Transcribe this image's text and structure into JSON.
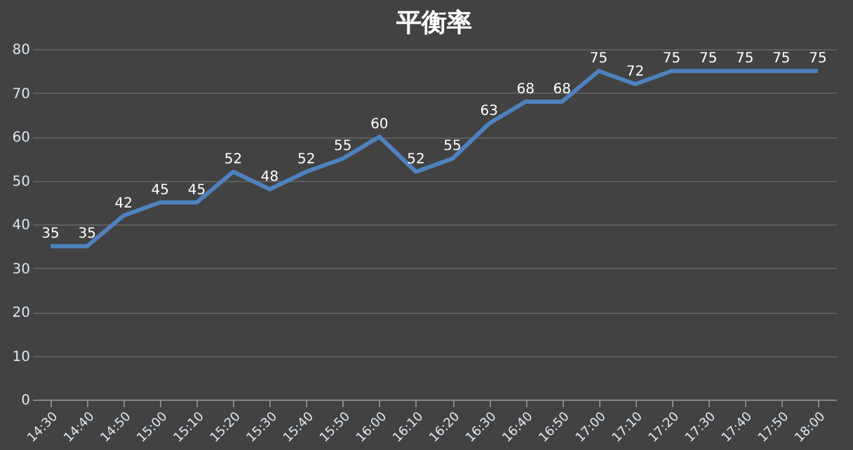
{
  "chart_data": {
    "type": "line",
    "title": "平衡率",
    "categories": [
      "14:30",
      "14:40",
      "14:50",
      "15:00",
      "15:10",
      "15:20",
      "15:30",
      "15:40",
      "15:50",
      "16:00",
      "16:10",
      "16:20",
      "16:30",
      "16:40",
      "16:50",
      "17:00",
      "17:10",
      "17:20",
      "17:30",
      "17:40",
      "17:50",
      "18:00"
    ],
    "series": [
      {
        "color": "#4f81bd",
        "values": [
          35,
          35,
          42,
          45,
          45,
          52,
          48,
          52,
          55,
          60,
          52,
          55,
          63,
          68,
          68,
          75,
          72,
          75,
          75,
          75,
          75,
          75
        ]
      }
    ],
    "ylim": [
      0,
      80
    ],
    "yticks": [
      0,
      10,
      20,
      30,
      40,
      50,
      60,
      70,
      80
    ],
    "grid": "y",
    "data_labels": true,
    "marker": "none",
    "line_style": "solid",
    "legend": false
  }
}
